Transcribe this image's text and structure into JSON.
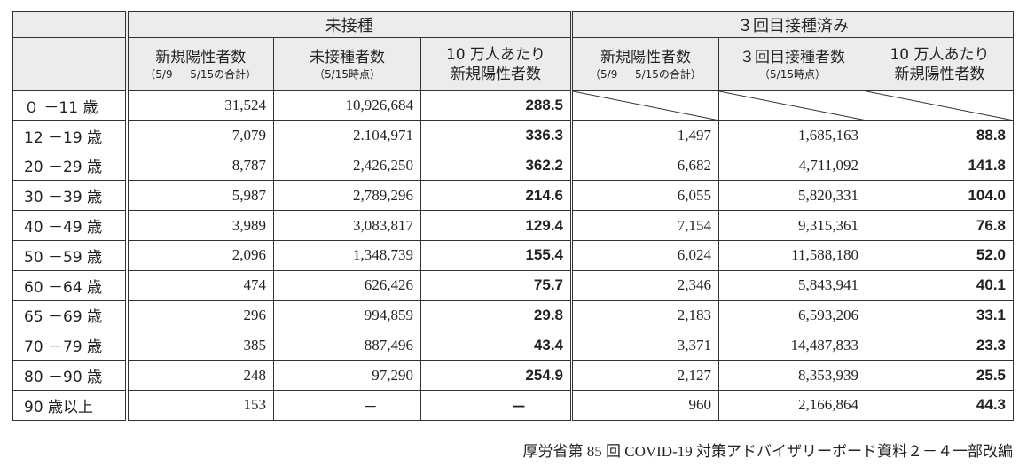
{
  "header": {
    "group_unvaccinated": "未接種",
    "group_boosted": "３回目接種済み",
    "columns": [
      {
        "main": "新規陽性者数",
        "sub": "（5/9 － 5/15の合計）"
      },
      {
        "main": "未接種者数",
        "sub": "（5/15時点）"
      },
      {
        "main": "10 万人あたり",
        "main2": "新規陽性者数"
      },
      {
        "main": "新規陽性者数",
        "sub": "（5/9 － 5/15の合計）"
      },
      {
        "main": "３回目接種者数",
        "sub": "（5/15時点）"
      },
      {
        "main": "10 万人あたり",
        "main2": "新規陽性者数"
      }
    ]
  },
  "rows": [
    {
      "age": "０ －11 歳",
      "u_new": "31,524",
      "u_count": "10,926,684",
      "u_rate": "288.5",
      "b_new": "",
      "b_count": "",
      "b_rate": ""
    },
    {
      "age": "12 －19 歳",
      "u_new": "7,079",
      "u_count": "2.104,971",
      "u_rate": "336.3",
      "b_new": "1,497",
      "b_count": "1,685,163",
      "b_rate": "88.8"
    },
    {
      "age": "20 －29 歳",
      "u_new": "8,787",
      "u_count": "2,426,250",
      "u_rate": "362.2",
      "b_new": "6,682",
      "b_count": "4,711,092",
      "b_rate": "141.8"
    },
    {
      "age": "30 －39 歳",
      "u_new": "5,987",
      "u_count": "2,789,296",
      "u_rate": "214.6",
      "b_new": "6,055",
      "b_count": "5,820,331",
      "b_rate": "104.0"
    },
    {
      "age": "40 －49 歳",
      "u_new": "3,989",
      "u_count": "3,083,817",
      "u_rate": "129.4",
      "b_new": "7,154",
      "b_count": "9,315,361",
      "b_rate": "76.8"
    },
    {
      "age": "50 －59 歳",
      "u_new": "2,096",
      "u_count": "1,348,739",
      "u_rate": "155.4",
      "b_new": "6,024",
      "b_count": "11,588,180",
      "b_rate": "52.0"
    },
    {
      "age": "60 －64 歳",
      "u_new": "474",
      "u_count": "626,426",
      "u_rate": "75.7",
      "b_new": "2,346",
      "b_count": "5,843,941",
      "b_rate": "40.1"
    },
    {
      "age": "65 －69 歳",
      "u_new": "296",
      "u_count": "994,859",
      "u_rate": "29.8",
      "b_new": "2,183",
      "b_count": "6,593,206",
      "b_rate": "33.1"
    },
    {
      "age": "70 －79 歳",
      "u_new": "385",
      "u_count": "887,496",
      "u_rate": "43.4",
      "b_new": "3,371",
      "b_count": "14,487,833",
      "b_rate": "23.3"
    },
    {
      "age": "80 －90 歳",
      "u_new": "248",
      "u_count": "97,290",
      "u_rate": "254.9",
      "b_new": "2,127",
      "b_count": "8,353,939",
      "b_rate": "25.5"
    },
    {
      "age": "90 歳以上",
      "u_new": "153",
      "u_count": "－",
      "u_rate": "－",
      "b_new": "960",
      "b_count": "2,166,864",
      "b_rate": "44.3"
    }
  ],
  "source": "厚労省第 85 回 COVID-19 対策アドバイザリーボード資料２－４一部改編"
}
